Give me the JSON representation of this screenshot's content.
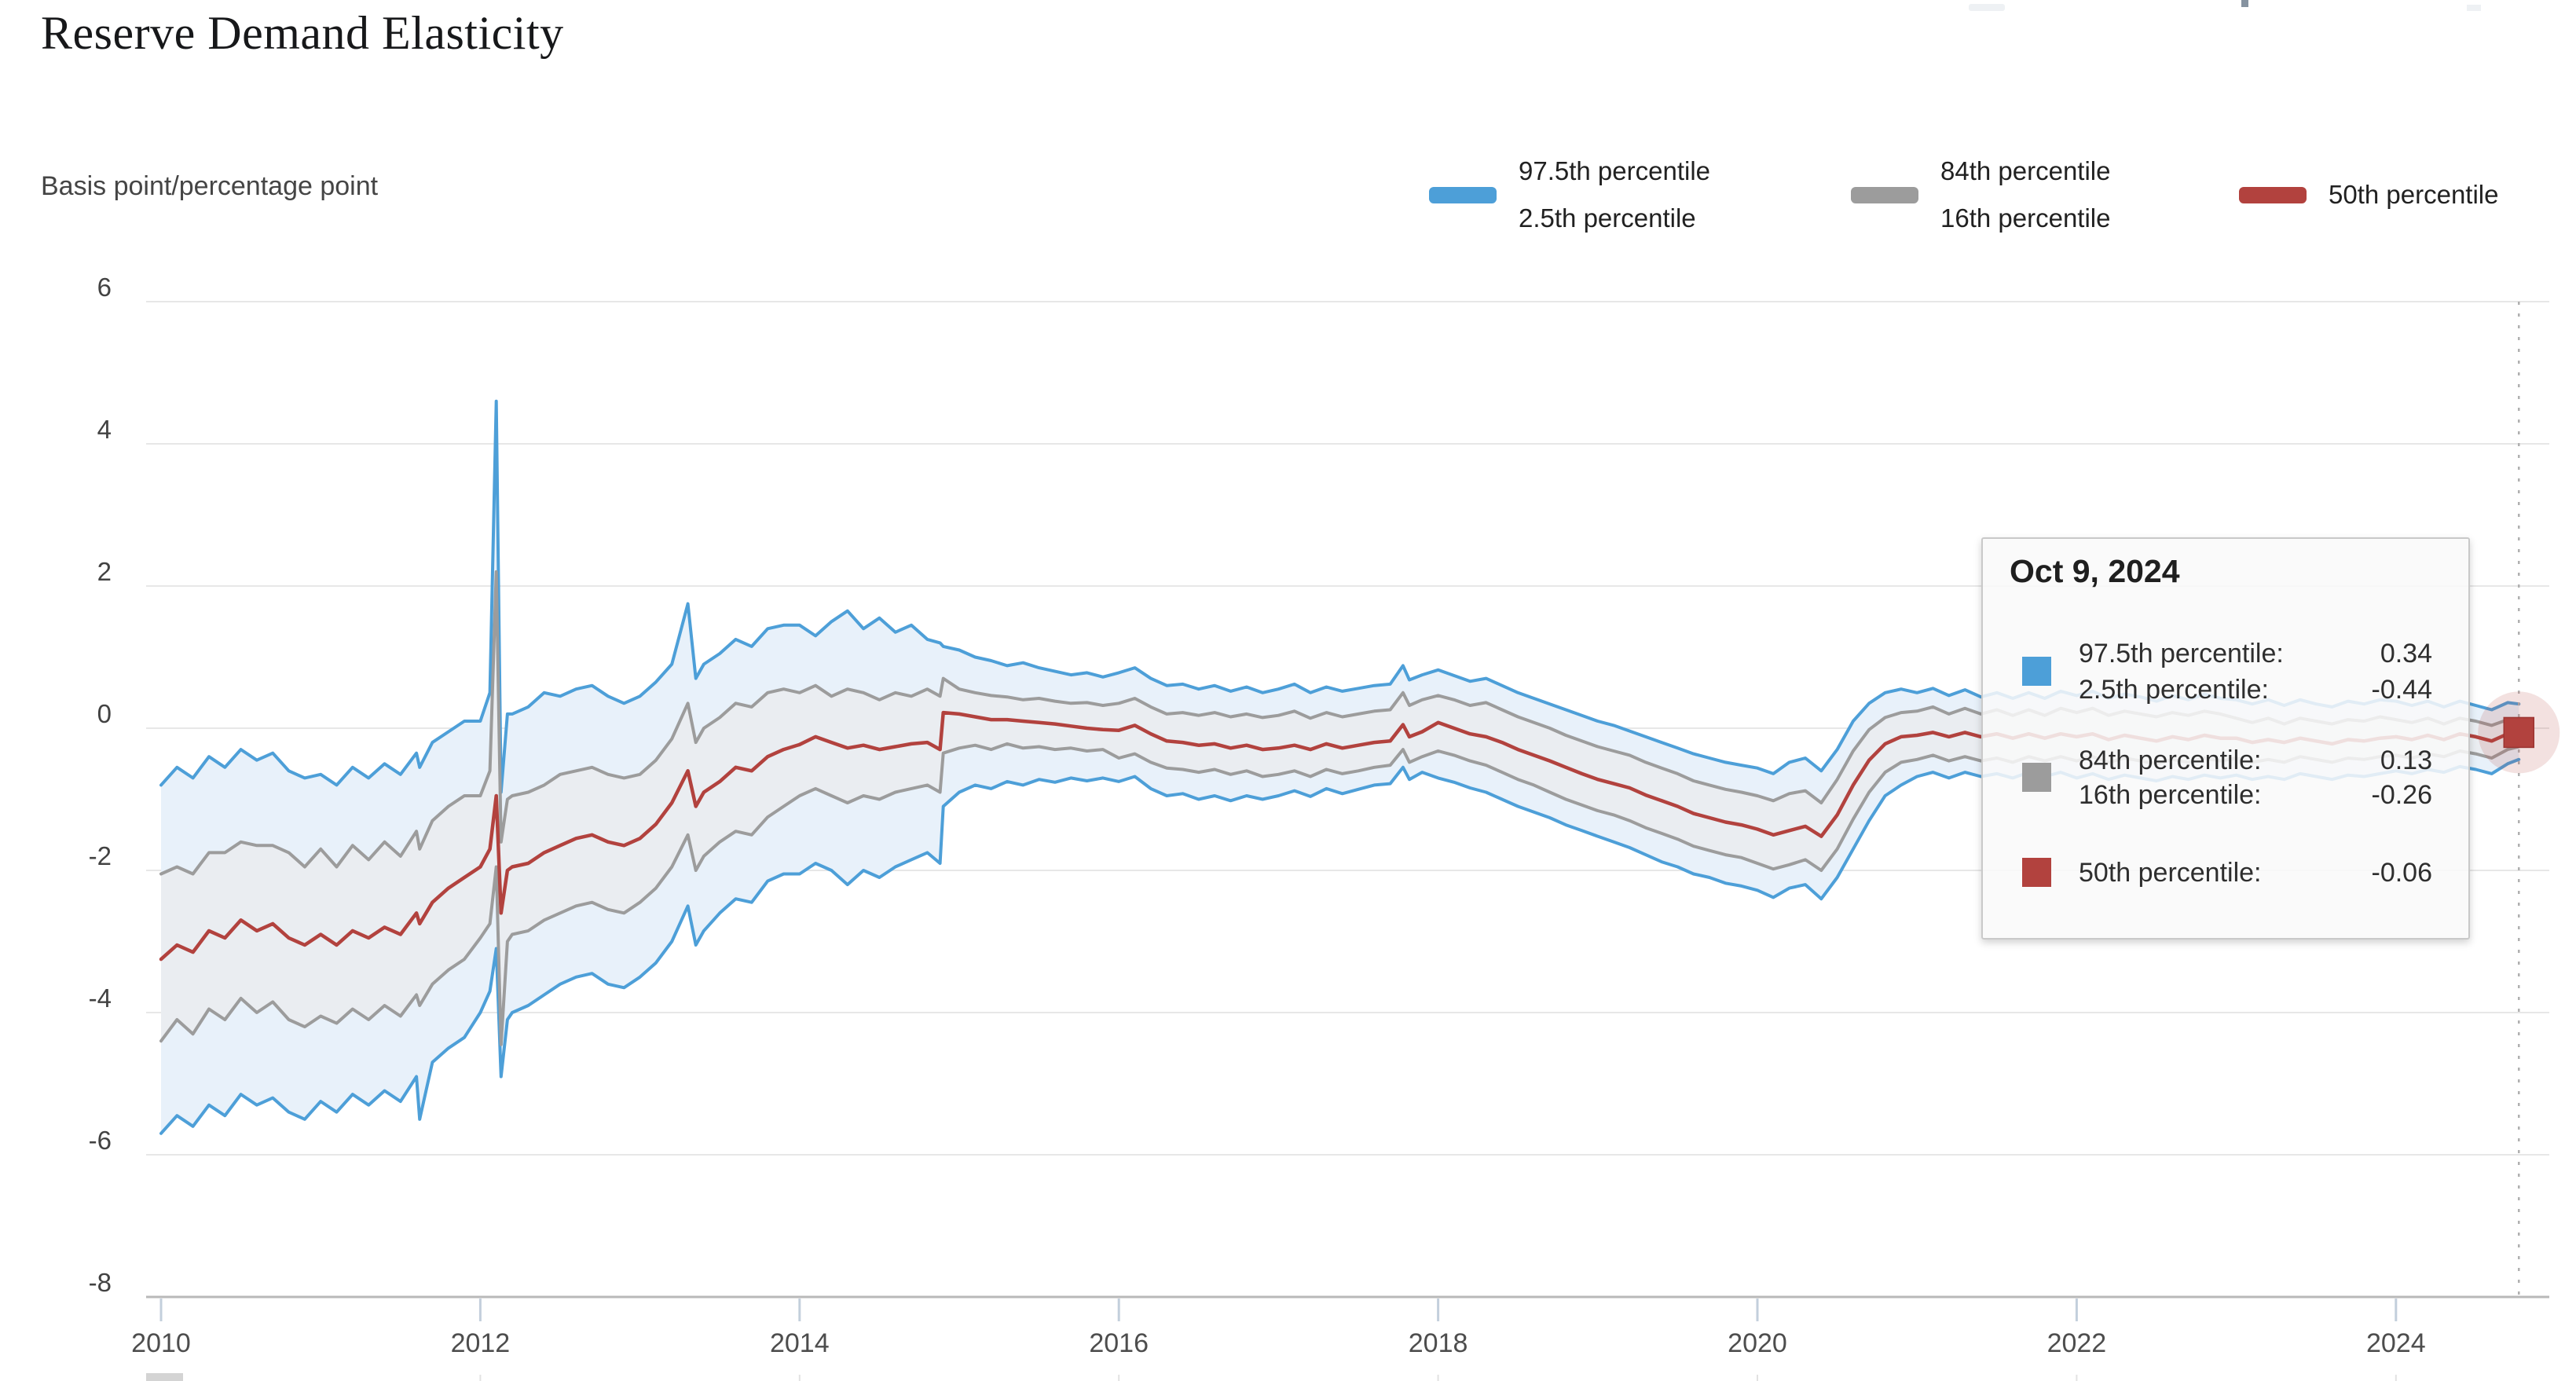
{
  "page": {
    "title": "Reserve Demand Elasticity",
    "y_axis_title": "Basis point/percentage point"
  },
  "colors": {
    "band95": "#4d9fd8",
    "band68": "#9c9c9c",
    "median": "#b2423e",
    "outer_fill": "#e8f1fa",
    "inner_fill": "#eaedf1",
    "gridline": "#e7e7e7",
    "axis_line": "#b9b9b9",
    "tick_stub": "#c3cfdc",
    "crosshair": "#b0b0b0"
  },
  "legend": {
    "items": [
      {
        "id": "band95",
        "color": "#4d9fd8",
        "line1": "97.5th percentile",
        "line2": "2.5th percentile"
      },
      {
        "id": "band68",
        "color": "#9c9c9c",
        "line1": "84th percentile",
        "line2": "16th percentile"
      },
      {
        "id": "median",
        "color": "#b2423e",
        "line1": "50th percentile",
        "line2": ""
      }
    ]
  },
  "tooltip": {
    "date": "Oct 9, 2024",
    "rows": [
      {
        "label": "97.5th percentile:",
        "value": "0.34",
        "group": "band95"
      },
      {
        "label": "2.5th percentile:",
        "value": "-0.44",
        "group": "band95"
      },
      {
        "label": "84th percentile:",
        "value": "0.13",
        "group": "band68"
      },
      {
        "label": "16th percentile:",
        "value": "-0.26",
        "group": "band68"
      },
      {
        "label": "50th percentile:",
        "value": "-0.06",
        "group": "median"
      }
    ]
  },
  "chart_data": {
    "type": "line",
    "title": "Reserve Demand Elasticity",
    "xlabel": "",
    "ylabel": "Basis point/percentage point",
    "ylim": [
      -8,
      6
    ],
    "xlim": [
      2010,
      2024.95
    ],
    "y_ticks": [
      6,
      4,
      2,
      0,
      -2,
      -4,
      -6,
      -8
    ],
    "x_ticks": [
      2010,
      2012,
      2014,
      2016,
      2018,
      2020,
      2022,
      2024
    ],
    "grid": "horizontal",
    "legend_position": "top-right",
    "last_point": {
      "date": "Oct 9, 2024",
      "x": 2024.77,
      "median": -0.06
    },
    "x": [
      2010.0,
      2010.1,
      2010.2,
      2010.3,
      2010.4,
      2010.5,
      2010.6,
      2010.7,
      2010.8,
      2010.9,
      2011.0,
      2011.1,
      2011.2,
      2011.3,
      2011.4,
      2011.5,
      2011.6,
      2011.62,
      2011.7,
      2011.8,
      2011.9,
      2012.0,
      2012.06,
      2012.1,
      2012.13,
      2012.17,
      2012.2,
      2012.3,
      2012.4,
      2012.5,
      2012.6,
      2012.7,
      2012.8,
      2012.9,
      2013.0,
      2013.1,
      2013.2,
      2013.3,
      2013.35,
      2013.4,
      2013.5,
      2013.6,
      2013.7,
      2013.8,
      2013.9,
      2014.0,
      2014.1,
      2014.2,
      2014.3,
      2014.4,
      2014.5,
      2014.6,
      2014.7,
      2014.8,
      2014.88,
      2014.9,
      2015.0,
      2015.1,
      2015.2,
      2015.3,
      2015.4,
      2015.5,
      2015.6,
      2015.7,
      2015.8,
      2015.9,
      2016.0,
      2016.1,
      2016.2,
      2016.3,
      2016.4,
      2016.5,
      2016.6,
      2016.7,
      2016.8,
      2016.9,
      2017.0,
      2017.1,
      2017.2,
      2017.3,
      2017.4,
      2017.5,
      2017.6,
      2017.7,
      2017.78,
      2017.82,
      2017.9,
      2018.0,
      2018.1,
      2018.2,
      2018.3,
      2018.4,
      2018.5,
      2018.6,
      2018.7,
      2018.8,
      2018.9,
      2019.0,
      2019.1,
      2019.2,
      2019.3,
      2019.4,
      2019.5,
      2019.6,
      2019.7,
      2019.8,
      2019.9,
      2020.0,
      2020.1,
      2020.2,
      2020.3,
      2020.4,
      2020.5,
      2020.6,
      2020.7,
      2020.8,
      2020.9,
      2021.0,
      2021.1,
      2021.2,
      2021.3,
      2021.4,
      2021.5,
      2021.6,
      2021.7,
      2021.8,
      2021.9,
      2022.0,
      2022.1,
      2022.2,
      2022.3,
      2022.4,
      2022.5,
      2022.6,
      2022.7,
      2022.8,
      2022.9,
      2023.0,
      2023.1,
      2023.2,
      2023.3,
      2023.4,
      2023.5,
      2023.6,
      2023.7,
      2023.8,
      2023.9,
      2024.0,
      2024.1,
      2024.2,
      2024.3,
      2024.4,
      2024.5,
      2024.6,
      2024.7,
      2024.77
    ],
    "series": [
      {
        "name": "97.5th percentile",
        "color": "#4d9fd8",
        "values": [
          -0.8,
          -0.55,
          -0.7,
          -0.4,
          -0.55,
          -0.3,
          -0.45,
          -0.35,
          -0.6,
          -0.7,
          -0.65,
          -0.8,
          -0.55,
          -0.7,
          -0.5,
          -0.65,
          -0.35,
          -0.55,
          -0.2,
          -0.05,
          0.1,
          0.1,
          0.5,
          4.6,
          -0.9,
          0.2,
          0.2,
          0.3,
          0.5,
          0.45,
          0.55,
          0.6,
          0.45,
          0.35,
          0.45,
          0.65,
          0.9,
          1.75,
          0.7,
          0.9,
          1.05,
          1.25,
          1.15,
          1.4,
          1.45,
          1.45,
          1.3,
          1.5,
          1.65,
          1.4,
          1.55,
          1.35,
          1.45,
          1.25,
          1.2,
          1.15,
          1.1,
          1.0,
          0.95,
          0.88,
          0.92,
          0.85,
          0.8,
          0.75,
          0.78,
          0.72,
          0.78,
          0.85,
          0.7,
          0.6,
          0.62,
          0.55,
          0.6,
          0.52,
          0.58,
          0.5,
          0.55,
          0.62,
          0.5,
          0.58,
          0.52,
          0.56,
          0.6,
          0.62,
          0.88,
          0.68,
          0.75,
          0.82,
          0.74,
          0.66,
          0.7,
          0.6,
          0.5,
          0.42,
          0.34,
          0.26,
          0.18,
          0.1,
          0.04,
          -0.04,
          -0.12,
          -0.2,
          -0.28,
          -0.36,
          -0.42,
          -0.48,
          -0.52,
          -0.56,
          -0.64,
          -0.48,
          -0.42,
          -0.6,
          -0.3,
          0.1,
          0.35,
          0.5,
          0.55,
          0.5,
          0.56,
          0.46,
          0.54,
          0.44,
          0.5,
          0.42,
          0.5,
          0.42,
          0.52,
          0.46,
          0.52,
          0.42,
          0.48,
          0.44,
          0.38,
          0.46,
          0.4,
          0.48,
          0.42,
          0.4,
          0.34,
          0.4,
          0.32,
          0.4,
          0.34,
          0.3,
          0.38,
          0.34,
          0.4,
          0.38,
          0.32,
          0.38,
          0.3,
          0.38,
          0.32,
          0.26,
          0.36,
          0.34
        ]
      },
      {
        "name": "84th percentile",
        "color": "#9c9c9c",
        "values": [
          -2.05,
          -1.95,
          -2.05,
          -1.75,
          -1.75,
          -1.6,
          -1.65,
          -1.65,
          -1.75,
          -1.95,
          -1.7,
          -1.95,
          -1.65,
          -1.85,
          -1.6,
          -1.8,
          -1.45,
          -1.7,
          -1.3,
          -1.1,
          -0.95,
          -0.95,
          -0.6,
          2.2,
          -1.6,
          -1.0,
          -0.95,
          -0.9,
          -0.8,
          -0.65,
          -0.6,
          -0.55,
          -0.65,
          -0.7,
          -0.65,
          -0.45,
          -0.15,
          0.35,
          -0.2,
          0.0,
          0.15,
          0.35,
          0.3,
          0.5,
          0.55,
          0.5,
          0.6,
          0.45,
          0.55,
          0.5,
          0.4,
          0.5,
          0.45,
          0.55,
          0.45,
          0.7,
          0.55,
          0.5,
          0.46,
          0.44,
          0.4,
          0.42,
          0.38,
          0.35,
          0.36,
          0.32,
          0.35,
          0.42,
          0.3,
          0.2,
          0.22,
          0.18,
          0.22,
          0.16,
          0.2,
          0.15,
          0.18,
          0.24,
          0.14,
          0.22,
          0.16,
          0.2,
          0.24,
          0.26,
          0.5,
          0.32,
          0.4,
          0.46,
          0.4,
          0.32,
          0.36,
          0.26,
          0.16,
          0.08,
          0.0,
          -0.1,
          -0.18,
          -0.26,
          -0.32,
          -0.38,
          -0.48,
          -0.56,
          -0.64,
          -0.74,
          -0.8,
          -0.86,
          -0.9,
          -0.95,
          -1.02,
          -0.92,
          -0.88,
          -1.05,
          -0.72,
          -0.32,
          -0.02,
          0.15,
          0.22,
          0.24,
          0.3,
          0.2,
          0.28,
          0.2,
          0.26,
          0.18,
          0.26,
          0.18,
          0.28,
          0.22,
          0.28,
          0.18,
          0.24,
          0.2,
          0.16,
          0.22,
          0.18,
          0.24,
          0.2,
          0.14,
          0.08,
          0.14,
          0.06,
          0.14,
          0.1,
          0.06,
          0.12,
          0.1,
          0.16,
          0.12,
          0.08,
          0.14,
          0.06,
          0.14,
          0.1,
          0.04,
          0.12,
          0.13
        ]
      },
      {
        "name": "50th percentile",
        "color": "#b2423e",
        "values": [
          -3.25,
          -3.05,
          -3.15,
          -2.85,
          -2.95,
          -2.7,
          -2.85,
          -2.75,
          -2.95,
          -3.05,
          -2.9,
          -3.05,
          -2.85,
          -2.95,
          -2.8,
          -2.9,
          -2.6,
          -2.75,
          -2.45,
          -2.25,
          -2.1,
          -1.95,
          -1.7,
          -0.95,
          -2.6,
          -2.0,
          -1.95,
          -1.9,
          -1.75,
          -1.65,
          -1.55,
          -1.5,
          -1.6,
          -1.65,
          -1.55,
          -1.35,
          -1.05,
          -0.6,
          -1.1,
          -0.9,
          -0.75,
          -0.55,
          -0.6,
          -0.4,
          -0.3,
          -0.23,
          -0.12,
          -0.2,
          -0.28,
          -0.24,
          -0.3,
          -0.26,
          -0.22,
          -0.2,
          -0.3,
          0.22,
          0.2,
          0.16,
          0.12,
          0.12,
          0.1,
          0.08,
          0.06,
          0.03,
          0.0,
          -0.02,
          -0.03,
          0.04,
          -0.08,
          -0.18,
          -0.2,
          -0.24,
          -0.22,
          -0.28,
          -0.24,
          -0.3,
          -0.28,
          -0.24,
          -0.3,
          -0.22,
          -0.28,
          -0.24,
          -0.2,
          -0.18,
          0.05,
          -0.12,
          -0.05,
          0.08,
          0.0,
          -0.08,
          -0.12,
          -0.2,
          -0.3,
          -0.38,
          -0.46,
          -0.55,
          -0.64,
          -0.72,
          -0.78,
          -0.84,
          -0.94,
          -1.02,
          -1.1,
          -1.2,
          -1.26,
          -1.32,
          -1.36,
          -1.42,
          -1.5,
          -1.44,
          -1.38,
          -1.52,
          -1.22,
          -0.8,
          -0.45,
          -0.22,
          -0.12,
          -0.1,
          -0.06,
          -0.12,
          -0.06,
          -0.12,
          -0.08,
          -0.14,
          -0.08,
          -0.14,
          -0.08,
          -0.12,
          -0.08,
          -0.16,
          -0.1,
          -0.14,
          -0.18,
          -0.12,
          -0.16,
          -0.1,
          -0.14,
          -0.14,
          -0.2,
          -0.16,
          -0.2,
          -0.14,
          -0.18,
          -0.22,
          -0.16,
          -0.18,
          -0.14,
          -0.12,
          -0.16,
          -0.1,
          -0.16,
          -0.08,
          -0.12,
          -0.18,
          -0.08,
          -0.06
        ]
      },
      {
        "name": "16th percentile",
        "color": "#9c9c9c",
        "values": [
          -4.4,
          -4.1,
          -4.3,
          -3.95,
          -4.1,
          -3.8,
          -4.0,
          -3.85,
          -4.1,
          -4.2,
          -4.05,
          -4.15,
          -3.95,
          -4.1,
          -3.9,
          -4.05,
          -3.75,
          -3.9,
          -3.6,
          -3.4,
          -3.25,
          -2.95,
          -2.75,
          -1.95,
          -4.45,
          -3.0,
          -2.9,
          -2.85,
          -2.7,
          -2.6,
          -2.5,
          -2.45,
          -2.55,
          -2.6,
          -2.45,
          -2.25,
          -1.95,
          -1.5,
          -2.0,
          -1.8,
          -1.6,
          -1.45,
          -1.5,
          -1.25,
          -1.1,
          -0.95,
          -0.85,
          -0.95,
          -1.05,
          -0.95,
          -1.0,
          -0.9,
          -0.85,
          -0.8,
          -0.9,
          -0.35,
          -0.28,
          -0.24,
          -0.3,
          -0.22,
          -0.28,
          -0.26,
          -0.3,
          -0.28,
          -0.32,
          -0.3,
          -0.42,
          -0.36,
          -0.48,
          -0.56,
          -0.58,
          -0.62,
          -0.58,
          -0.65,
          -0.6,
          -0.68,
          -0.65,
          -0.6,
          -0.68,
          -0.58,
          -0.64,
          -0.6,
          -0.55,
          -0.52,
          -0.3,
          -0.48,
          -0.4,
          -0.32,
          -0.38,
          -0.46,
          -0.52,
          -0.62,
          -0.72,
          -0.8,
          -0.9,
          -1.0,
          -1.08,
          -1.16,
          -1.22,
          -1.3,
          -1.4,
          -1.48,
          -1.56,
          -1.66,
          -1.72,
          -1.78,
          -1.82,
          -1.9,
          -1.98,
          -1.92,
          -1.85,
          -2.0,
          -1.7,
          -1.28,
          -0.9,
          -0.62,
          -0.48,
          -0.44,
          -0.38,
          -0.46,
          -0.4,
          -0.46,
          -0.42,
          -0.48,
          -0.4,
          -0.46,
          -0.4,
          -0.46,
          -0.4,
          -0.48,
          -0.42,
          -0.46,
          -0.5,
          -0.44,
          -0.48,
          -0.42,
          -0.46,
          -0.42,
          -0.48,
          -0.44,
          -0.48,
          -0.4,
          -0.44,
          -0.48,
          -0.42,
          -0.44,
          -0.4,
          -0.38,
          -0.42,
          -0.36,
          -0.4,
          -0.32,
          -0.36,
          -0.42,
          -0.3,
          -0.26
        ]
      },
      {
        "name": "2.5th percentile",
        "color": "#4d9fd8",
        "values": [
          -5.7,
          -5.45,
          -5.6,
          -5.3,
          -5.45,
          -5.15,
          -5.3,
          -5.2,
          -5.4,
          -5.5,
          -5.25,
          -5.4,
          -5.15,
          -5.3,
          -5.1,
          -5.25,
          -4.9,
          -5.5,
          -4.7,
          -4.5,
          -4.35,
          -4.0,
          -3.7,
          -3.1,
          -4.9,
          -4.1,
          -4.0,
          -3.9,
          -3.75,
          -3.6,
          -3.5,
          -3.45,
          -3.6,
          -3.65,
          -3.5,
          -3.3,
          -3.0,
          -2.5,
          -3.05,
          -2.85,
          -2.6,
          -2.4,
          -2.45,
          -2.15,
          -2.05,
          -2.05,
          -1.9,
          -2.0,
          -2.2,
          -2.0,
          -2.1,
          -1.95,
          -1.85,
          -1.75,
          -1.9,
          -1.1,
          -0.9,
          -0.8,
          -0.85,
          -0.75,
          -0.8,
          -0.72,
          -0.76,
          -0.7,
          -0.74,
          -0.7,
          -0.75,
          -0.68,
          -0.85,
          -0.95,
          -0.92,
          -1.0,
          -0.95,
          -1.02,
          -0.95,
          -1.0,
          -0.95,
          -0.88,
          -0.96,
          -0.85,
          -0.92,
          -0.86,
          -0.8,
          -0.78,
          -0.55,
          -0.72,
          -0.62,
          -0.7,
          -0.76,
          -0.84,
          -0.9,
          -1.0,
          -1.1,
          -1.18,
          -1.26,
          -1.36,
          -1.44,
          -1.52,
          -1.6,
          -1.68,
          -1.78,
          -1.88,
          -1.95,
          -2.05,
          -2.1,
          -2.18,
          -2.22,
          -2.28,
          -2.38,
          -2.25,
          -2.2,
          -2.4,
          -2.1,
          -1.7,
          -1.3,
          -0.95,
          -0.8,
          -0.68,
          -0.62,
          -0.7,
          -0.62,
          -0.68,
          -0.64,
          -0.7,
          -0.62,
          -0.68,
          -0.62,
          -0.7,
          -0.64,
          -0.72,
          -0.66,
          -0.7,
          -0.74,
          -0.68,
          -0.72,
          -0.66,
          -0.7,
          -0.66,
          -0.72,
          -0.68,
          -0.72,
          -0.64,
          -0.68,
          -0.72,
          -0.66,
          -0.68,
          -0.64,
          -0.6,
          -0.64,
          -0.58,
          -0.62,
          -0.54,
          -0.58,
          -0.64,
          -0.5,
          -0.44
        ]
      }
    ],
    "bands": [
      {
        "upper": "97.5th percentile",
        "lower": "2.5th percentile",
        "fill": "#e8f1fa"
      },
      {
        "upper": "84th percentile",
        "lower": "16th percentile",
        "fill": "#eaedf1"
      }
    ]
  }
}
